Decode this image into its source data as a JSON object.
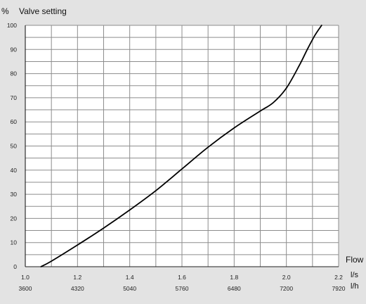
{
  "chart_data": {
    "type": "line",
    "title": "",
    "ylabel": "Valve setting",
    "y_unit": "%",
    "xlabel": "Flow",
    "x_unit_primary": "l/s",
    "x_unit_secondary": "l/h",
    "xlim": [
      1.0,
      2.2
    ],
    "ylim": [
      0,
      100
    ],
    "grid": true,
    "legend": "none",
    "x_ticks_primary": [
      "1.0",
      "1.2",
      "1.4",
      "1.6",
      "1.8",
      "2.0",
      "2.2"
    ],
    "x_ticks_secondary": [
      "3600",
      "4320",
      "5040",
      "5760",
      "6480",
      "7200",
      "7920"
    ],
    "y_ticks": [
      "0",
      "10",
      "20",
      "30",
      "40",
      "50",
      "60",
      "70",
      "80",
      "90",
      "100"
    ],
    "series": [
      {
        "x": [
          1.06,
          1.1,
          1.2,
          1.3,
          1.4,
          1.5,
          1.6,
          1.7,
          1.8,
          1.9,
          1.95,
          2.0,
          2.05,
          2.08,
          2.11,
          2.135
        ],
        "y": [
          0,
          2.3,
          9.0,
          16.0,
          23.5,
          31.5,
          40.5,
          49.5,
          57.5,
          64.5,
          68.0,
          74.0,
          83.5,
          90.0,
          96.0,
          100.0
        ]
      }
    ]
  },
  "colors": {
    "background": "#e3e3e3",
    "plot_background": "#ffffff",
    "grid": "#8d8d8d",
    "line": "#000000",
    "text": "#222222"
  }
}
